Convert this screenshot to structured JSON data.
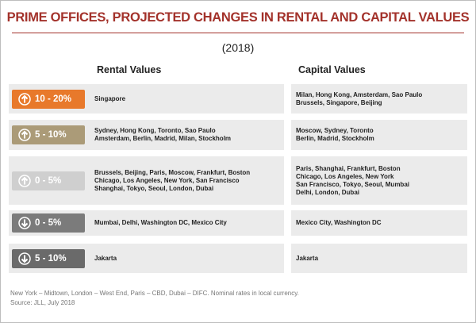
{
  "title": "PRIME OFFICES, PROJECTED CHANGES IN RENTAL AND CAPITAL VALUES",
  "subtitle": "(2018)",
  "table": {
    "headers": [
      "Rental Values",
      "Capital Values"
    ],
    "rows": [
      {
        "direction": "up",
        "color": "#e8792b",
        "label": "10 - 20%",
        "rental": [
          "Singapore"
        ],
        "capital": [
          "Milan, Hong Kong, Amsterdam, Sao Paulo",
          "Brussels, Singapore, Beijing"
        ]
      },
      {
        "direction": "up",
        "color": "#ab9b78",
        "label": "5 - 10%",
        "rental": [
          "Sydney, Hong Kong, Toronto, Sao Paulo",
          "Amsterdam, Berlin, Madrid, Milan, Stockholm"
        ],
        "capital": [
          "Moscow, Sydney, Toronto",
          "Berlin, Madrid, Stockholm"
        ]
      },
      {
        "direction": "up",
        "color": "#cfcfcf",
        "label": "0 - 5%",
        "rental": [
          "Brussels, Beijing, Paris, Moscow, Frankfurt, Boston",
          "Chicago, Los Angeles, New York, San Francisco",
          "Shanghai, Tokyo, Seoul, London, Dubai"
        ],
        "capital": [
          "Paris, Shanghai, Frankfurt, Boston",
          "Chicago, Los Angeles, New York",
          "San Francisco, Tokyo, Seoul, Mumbai",
          "Delhi, London, Dubai"
        ]
      },
      {
        "direction": "down",
        "color": "#7b7b7b",
        "label": "0 - 5%",
        "rental": [
          "Mumbai, Delhi, Washington DC, Mexico City"
        ],
        "capital": [
          "Mexico City, Washington DC"
        ]
      },
      {
        "direction": "down",
        "color": "#6a6a6a",
        "label": "5 - 10%",
        "rental": [
          "Jakarta"
        ],
        "capital": [
          "Jakarta"
        ]
      }
    ]
  },
  "footnote": [
    "New York – Midtown, London – West End, Paris – CBD, Dubai – DIFC. Nominal rates in local currency.",
    "Source: JLL, July 2018"
  ]
}
